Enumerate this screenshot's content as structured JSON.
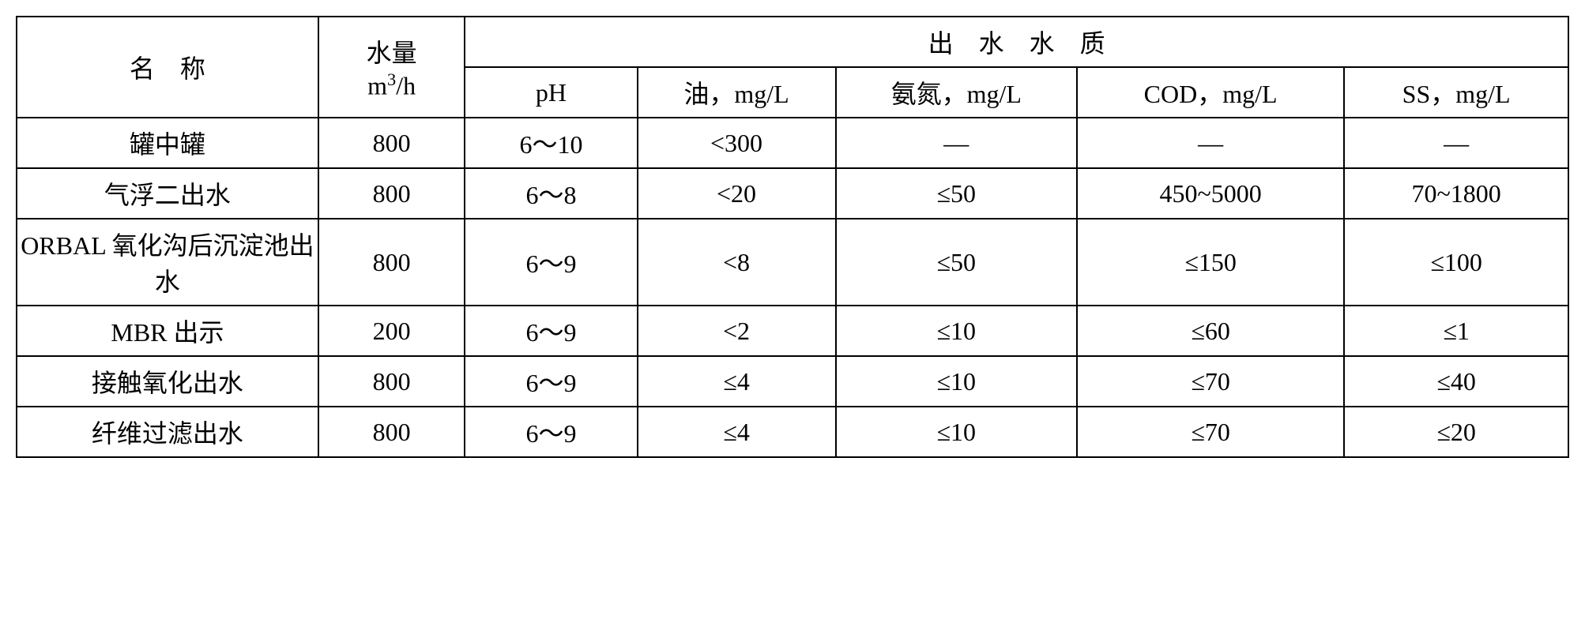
{
  "table": {
    "font_size_pt": 32,
    "border_color": "#000000",
    "background_color": "#ffffff",
    "text_color": "#000000",
    "header": {
      "name_label": "名　称",
      "flow_label_line1": "水量",
      "flow_label_line2_prefix": "m",
      "flow_label_line2_sup": "3",
      "flow_label_line2_suffix": "/h",
      "quality_label": "出　水　水　质",
      "ph_label": "pH",
      "oil_label": "油，mg/L",
      "nh_label": "氨氮，mg/L",
      "cod_label": "COD，mg/L",
      "ss_label": "SS，mg/L"
    },
    "rows": [
      {
        "name": "罐中罐",
        "flow": "800",
        "ph": "6～10",
        "oil": "<300",
        "nh": "—",
        "cod": "—",
        "ss": "—"
      },
      {
        "name": "气浮二出水",
        "flow": "800",
        "ph": "6～8",
        "oil": "<20",
        "nh": "≤50",
        "cod": "450~5000",
        "ss": "70~1800"
      },
      {
        "name": "ORBAL 氧化沟后沉淀池出水",
        "flow": "800",
        "ph": "6～9",
        "oil": "<8",
        "nh": "≤50",
        "cod": "≤150",
        "ss": "≤100"
      },
      {
        "name": "MBR 出示",
        "flow": "200",
        "ph": "6～9",
        "oil": "<2",
        "nh": "≤10",
        "cod": "≤60",
        "ss": "≤1"
      },
      {
        "name": "接触氧化出水",
        "flow": "800",
        "ph": "6～9",
        "oil": "≤4",
        "nh": "≤10",
        "cod": "≤70",
        "ss": "≤40"
      },
      {
        "name": "纤维过滤出水",
        "flow": "800",
        "ph": "6～9",
        "oil": "≤4",
        "nh": "≤10",
        "cod": "≤70",
        "ss": "≤20"
      }
    ]
  }
}
